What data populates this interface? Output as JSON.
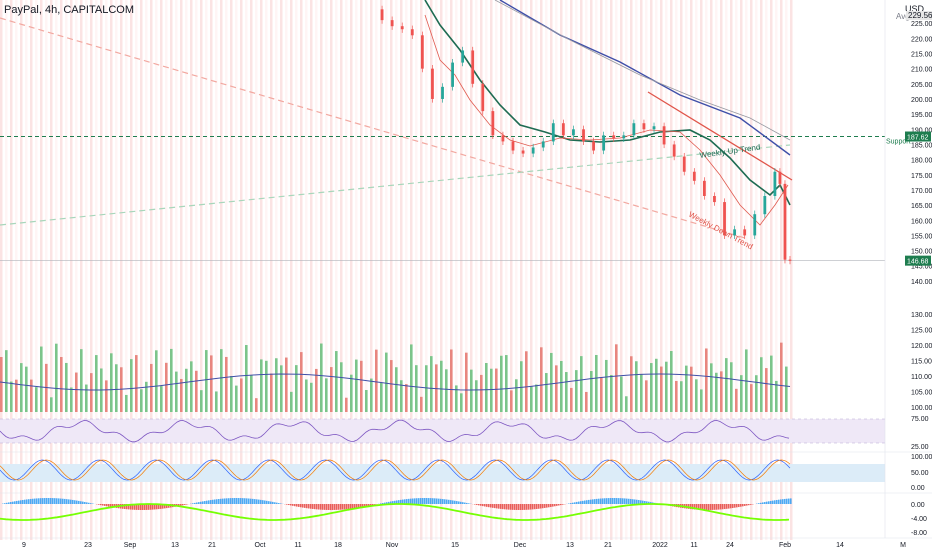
{
  "header": {
    "title": "PayPal, 4h, CAPITALCOM",
    "currency": "USD",
    "avg_label": "Avg",
    "avg_value": "229.56"
  },
  "price_labels": {
    "support_value": "187.62",
    "support_text": "Support",
    "last_value": "146.68"
  },
  "annotations": {
    "weekly_up": "Weekly Up Trend",
    "weekly_down": "Weekly Down Trend"
  },
  "colors": {
    "support_green": "#1e7d4f",
    "last_green": "#1e7d4f",
    "sma_green": "#1e6b52",
    "ema_red": "#e05a4f",
    "ma_blue": "#3f4fa8",
    "ma_gray": "#9598a1",
    "down_trend": "#f2a8a0",
    "up_trend": "#a8d6bb",
    "grid_pink": "#fbe3e3",
    "grid_white": "#ffffff"
  },
  "chart_data": {
    "type": "line",
    "symbol": "PayPal",
    "timeframe": "4h",
    "x_ticks": [
      "9",
      "23",
      "Sep",
      "13",
      "21",
      "Oct",
      "11",
      "18",
      "Nov",
      "15",
      "Dec",
      "13",
      "21",
      "2022",
      "11",
      "24",
      "Feb",
      "14",
      "M"
    ],
    "price_axis": {
      "ticks": [
        "225.00",
        "220.00",
        "215.00",
        "210.00",
        "205.00",
        "200.00",
        "195.00",
        "190.00",
        "185.00",
        "180.00",
        "175.00",
        "170.00",
        "165.00",
        "160.00",
        "155.00",
        "150.00",
        "145.00",
        "140.00"
      ],
      "range": [
        137,
        230
      ]
    },
    "volume_axis": {
      "ticks": [
        "130.00",
        "125.00",
        "120.00",
        "115.00",
        "110.00",
        "105.00",
        "100.00"
      ]
    },
    "rsi_axis": {
      "ticks": [
        "75.00",
        "25.00"
      ]
    },
    "stoch_axis": {
      "ticks": [
        "100.00",
        "50.00",
        "0.00"
      ]
    },
    "osc_axis": {
      "ticks": [
        "0.00",
        "-4.00",
        "-8.00"
      ]
    },
    "close_path": [
      [
        0,
        229.56
      ],
      [
        2,
        226
      ],
      [
        4,
        224
      ],
      [
        6,
        223
      ],
      [
        8,
        221
      ],
      [
        10,
        210
      ],
      [
        12,
        200
      ],
      [
        14,
        204
      ],
      [
        16,
        212
      ],
      [
        18,
        216
      ],
      [
        20,
        205
      ],
      [
        22,
        196
      ],
      [
        24,
        188
      ],
      [
        26,
        186
      ],
      [
        28,
        183
      ],
      [
        30,
        182
      ],
      [
        32,
        184
      ],
      [
        34,
        186
      ],
      [
        36,
        192
      ],
      [
        38,
        188
      ],
      [
        40,
        190
      ],
      [
        42,
        186
      ],
      [
        44,
        183
      ],
      [
        46,
        188
      ],
      [
        48,
        187
      ],
      [
        50,
        188
      ],
      [
        52,
        192
      ],
      [
        54,
        190
      ],
      [
        56,
        191
      ],
      [
        58,
        185
      ],
      [
        60,
        181
      ],
      [
        62,
        176
      ],
      [
        64,
        173
      ],
      [
        66,
        168
      ],
      [
        68,
        166
      ],
      [
        70,
        155
      ],
      [
        72,
        157
      ],
      [
        74,
        155
      ],
      [
        76,
        162
      ],
      [
        78,
        168
      ],
      [
        80,
        176
      ],
      [
        81,
        172
      ],
      [
        82,
        147
      ],
      [
        83,
        146.68
      ]
    ],
    "support_level": 187.62,
    "last_price": 146.68
  }
}
